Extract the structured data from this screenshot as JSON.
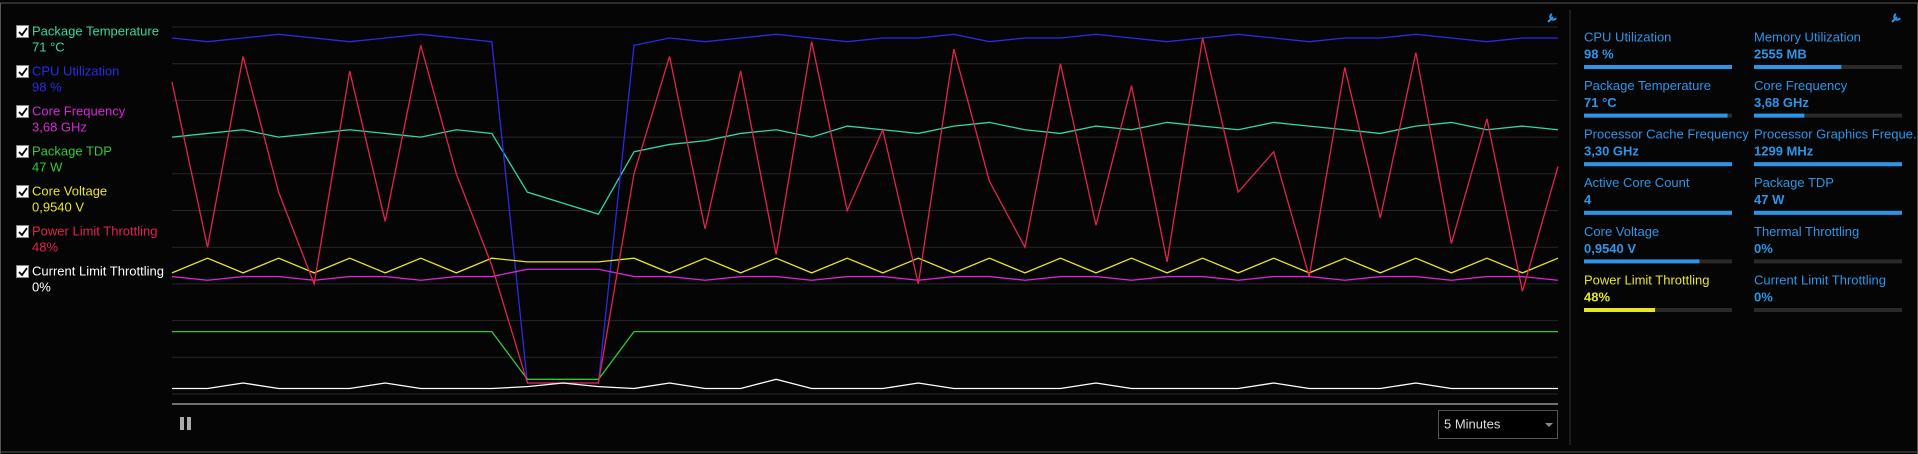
{
  "monitor": {
    "ylim": [
      0,
      100
    ],
    "series": [
      {
        "name": "Package Temperature",
        "value": "71 °C",
        "color": "#33d6a6",
        "checked": true,
        "values": [
          70,
          71,
          72,
          70,
          71,
          72,
          71,
          70,
          72,
          71,
          55,
          52,
          49,
          66,
          68,
          69,
          71,
          72,
          70,
          73,
          72,
          71,
          73,
          74,
          72,
          71,
          73,
          72,
          74,
          73,
          72,
          74,
          73,
          72,
          71,
          73,
          74,
          72,
          73,
          72
        ]
      },
      {
        "name": "CPU Utilization",
        "value": "98 %",
        "color": "#2a2ae6",
        "checked": true,
        "values": [
          97,
          96,
          97,
          98,
          97,
          96,
          97,
          98,
          97,
          96,
          3,
          3,
          3,
          95,
          97,
          96,
          97,
          98,
          97,
          96,
          97,
          97,
          98,
          96,
          97,
          97,
          98,
          97,
          96,
          97,
          98,
          97,
          96,
          97,
          97,
          98,
          97,
          96,
          97,
          97
        ]
      },
      {
        "name": "Core Frequency",
        "value": "3,68 GHz",
        "color": "#d626d6",
        "checked": true,
        "values": [
          32,
          31,
          32,
          32,
          31,
          32,
          32,
          31,
          32,
          32,
          34,
          34,
          34,
          32,
          32,
          31,
          32,
          32,
          31,
          32,
          32,
          31,
          32,
          32,
          31,
          32,
          32,
          31,
          32,
          32,
          31,
          32,
          32,
          31,
          32,
          32,
          31,
          32,
          32,
          31
        ]
      },
      {
        "name": "Package TDP",
        "value": "47 W",
        "color": "#33c833",
        "checked": true,
        "values": [
          17,
          17,
          17,
          17,
          17,
          17,
          17,
          17,
          17,
          17,
          4,
          4,
          4,
          17,
          17,
          17,
          17,
          17,
          17,
          17,
          17,
          17,
          17,
          17,
          17,
          17,
          17,
          17,
          17,
          17,
          17,
          17,
          17,
          17,
          17,
          17,
          17,
          17,
          17,
          17
        ]
      },
      {
        "name": "Core Voltage",
        "value": "0,9540 V",
        "color": "#e6e626",
        "checked": true,
        "values": [
          33,
          37,
          33,
          37,
          33,
          37,
          33,
          37,
          33,
          37,
          36,
          36,
          36,
          37,
          33,
          37,
          33,
          37,
          33,
          37,
          33,
          37,
          33,
          37,
          33,
          37,
          33,
          37,
          33,
          37,
          33,
          37,
          33,
          37,
          33,
          37,
          33,
          37,
          33,
          37
        ]
      },
      {
        "name": "Power Limit Throttling",
        "value": "48%",
        "color": "#e0244c",
        "checked": true,
        "values": [
          85,
          40,
          92,
          55,
          30,
          88,
          47,
          95,
          60,
          35,
          3,
          3,
          3,
          60,
          92,
          45,
          88,
          38,
          96,
          50,
          72,
          30,
          94,
          58,
          40,
          90,
          46,
          84,
          36,
          97,
          55,
          66,
          32,
          89,
          48,
          93,
          41,
          75,
          28,
          62
        ]
      },
      {
        "name": "Current Limit Throttling",
        "value": "0%",
        "color": "#ffffff",
        "checked": true,
        "values": [
          1.5,
          1.5,
          3,
          1.5,
          1.5,
          1.5,
          3,
          1.5,
          1.5,
          1.5,
          2,
          3,
          2,
          1.5,
          3,
          1.5,
          1.5,
          4,
          1.5,
          1.5,
          1.5,
          3,
          1.5,
          1.5,
          1.5,
          1.5,
          3,
          1.5,
          1.5,
          1.5,
          1.5,
          3,
          1.5,
          1.5,
          1.5,
          3,
          1.5,
          1.5,
          1.5,
          1.5
        ]
      }
    ]
  },
  "metrics": [
    {
      "label": "CPU Utilization",
      "value": "98 %",
      "bar": 100,
      "color": "#2b95e8"
    },
    {
      "label": "Package Temperature",
      "value": "71 °C",
      "bar": 97,
      "color": "#2b95e8"
    },
    {
      "label": "Processor Cache Frequency",
      "value": "3,30 GHz",
      "bar": 100,
      "color": "#2b95e8"
    },
    {
      "label": "Active Core Count",
      "value": "4",
      "bar": 100,
      "color": "#2b95e8"
    },
    {
      "label": "Core Voltage",
      "value": "0,9540 V",
      "bar": 78,
      "color": "#2b95e8"
    },
    {
      "label": "Power Limit Throttling",
      "value": "48%",
      "bar": 48,
      "color": "#e6e626"
    },
    {
      "label": "Memory Utilization",
      "value": "2555  MB",
      "bar": 59,
      "color": "#2b95e8"
    },
    {
      "label": "Core Frequency",
      "value": "3,68 GHz",
      "bar": 34,
      "color": "#2b95e8"
    },
    {
      "label": "Processor Graphics Freque...",
      "value": "1299 MHz",
      "bar": 100,
      "color": "#2b95e8"
    },
    {
      "label": "Package TDP",
      "value": "47 W",
      "bar": 100,
      "color": "#2b95e8"
    },
    {
      "label": "Thermal Throttling",
      "value": "0%",
      "bar": 0,
      "color": "#2b95e8"
    },
    {
      "label": "Current Limit Throttling",
      "value": "0%",
      "bar": 0,
      "color": "#2b95e8"
    }
  ],
  "controls": {
    "interval": "5 Minutes"
  }
}
